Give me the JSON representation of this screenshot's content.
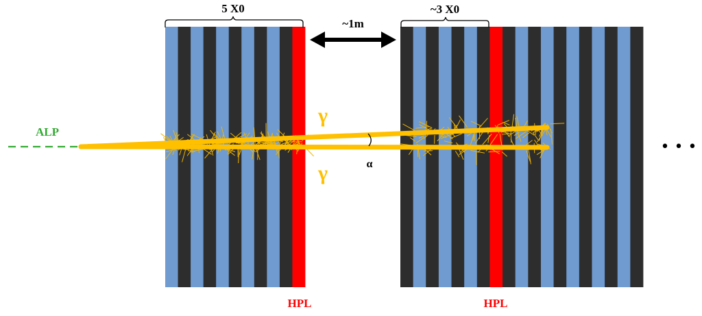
{
  "labels": {
    "module1_thickness": "5 X0",
    "module2_thickness": "~3 X0",
    "gap": "~1m",
    "particle": "ALP",
    "photon_upper": "γ",
    "photon_lower": "γ",
    "angle": "α",
    "hpl_1": "HPL",
    "hpl_2": "HPL",
    "continuation": "• • •"
  },
  "colors": {
    "absorber": "#2d2d2d",
    "scintillator": "#6f9bd1",
    "hpl": "#ff0000",
    "photon": "#ffc000",
    "shower": "#f0b400",
    "alp": "#33aa33",
    "text": "#000000"
  },
  "modules": [
    {
      "layers": [
        "scintillator",
        "absorber",
        "scintillator",
        "absorber",
        "scintillator",
        "absorber",
        "scintillator",
        "absorber",
        "scintillator",
        "absorber",
        "hpl"
      ]
    },
    {
      "layers": [
        "absorber",
        "scintillator",
        "absorber",
        "scintillator",
        "absorber",
        "scintillator",
        "absorber",
        "hpl",
        "absorber",
        "scintillator",
        "absorber",
        "scintillator",
        "absorber",
        "scintillator",
        "absorber",
        "scintillator",
        "absorber",
        "scintillator",
        "absorber"
      ]
    }
  ]
}
